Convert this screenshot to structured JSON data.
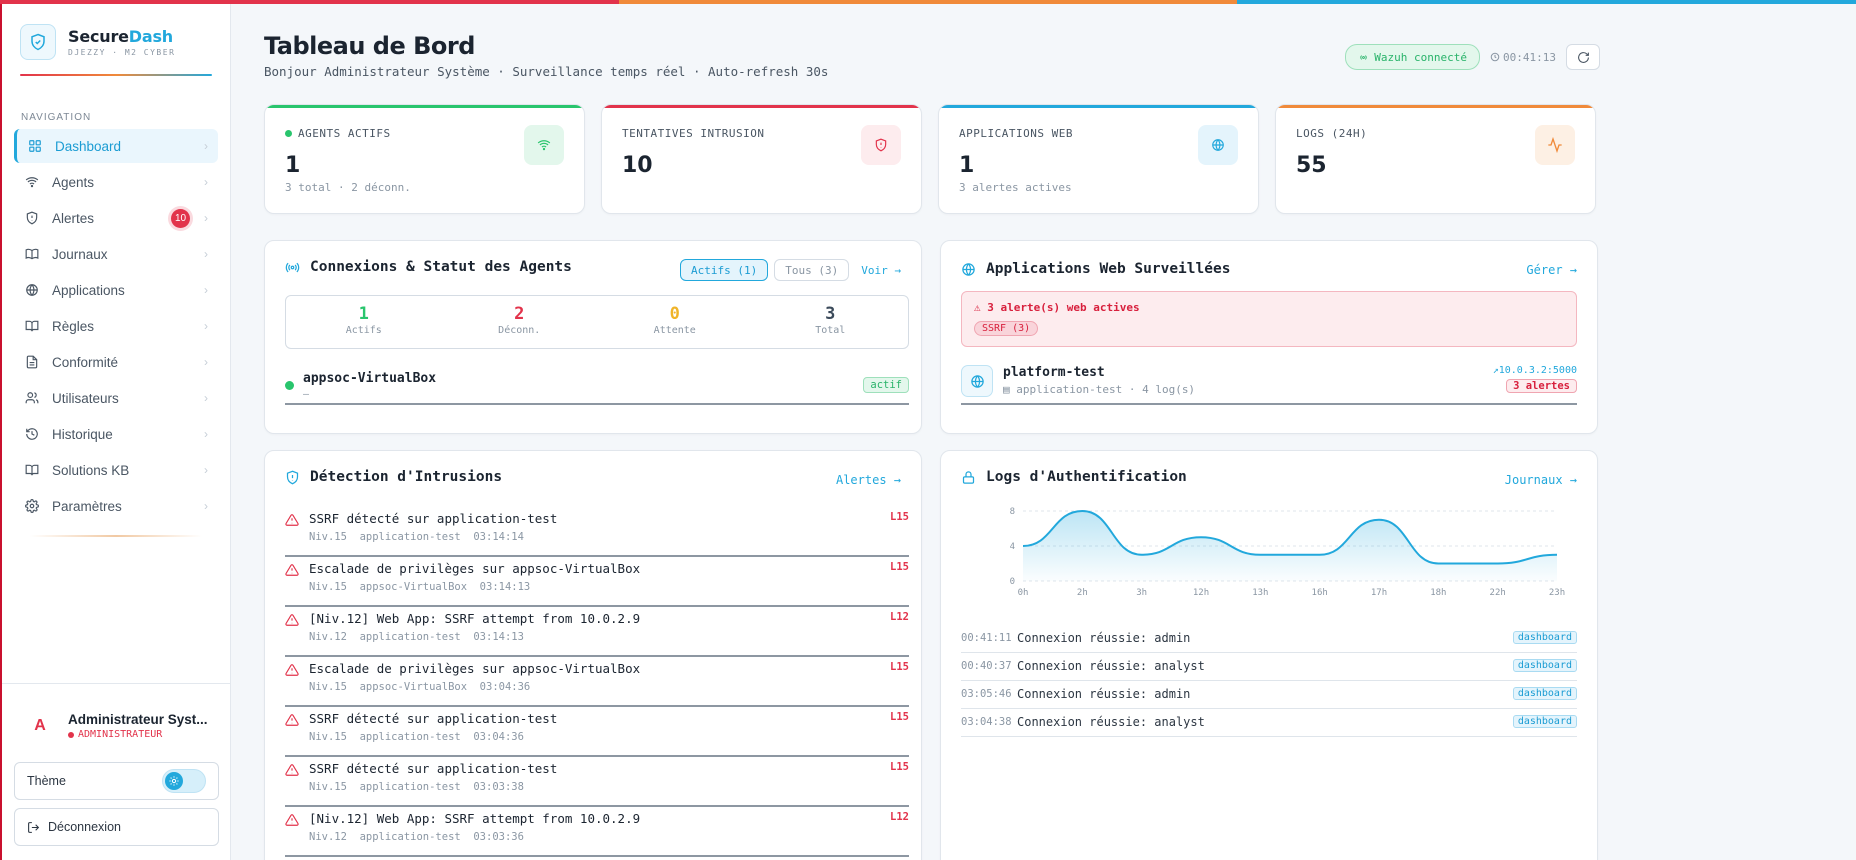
{
  "brand": {
    "name_part1": "Secure",
    "name_part2": "Dash",
    "subtitle": "DJEZZY · M2 CYBER"
  },
  "sidebar": {
    "section_label": "NAVIGATION",
    "items": [
      {
        "label": "Dashboard",
        "icon": "grid-icon",
        "active": true
      },
      {
        "label": "Agents",
        "icon": "wifi-icon"
      },
      {
        "label": "Alertes",
        "icon": "shield-alert-icon",
        "badge": "10"
      },
      {
        "label": "Journaux",
        "icon": "journal-icon"
      },
      {
        "label": "Applications",
        "icon": "globe-icon"
      },
      {
        "label": "Règles",
        "icon": "book-icon"
      },
      {
        "label": "Conformité",
        "icon": "document-icon"
      },
      {
        "label": "Utilisateurs",
        "icon": "users-icon"
      },
      {
        "label": "Historique",
        "icon": "history-icon"
      },
      {
        "label": "Solutions KB",
        "icon": "book-icon"
      },
      {
        "label": "Paramètres",
        "icon": "gear-icon"
      }
    ],
    "user": {
      "avatar_letter": "A",
      "name": "Administrateur Syst...",
      "role": "ADMINISTRATEUR"
    },
    "theme_label": "Thème",
    "logout_label": "Déconnexion"
  },
  "header": {
    "title": "Tableau de Bord",
    "subtitle": "Bonjour Administrateur Système · Surveillance temps réel · Auto-refresh 30s",
    "status": "Wazuh connecté",
    "clock": "00:41:13"
  },
  "stats": [
    {
      "label": "AGENTS ACTIFS",
      "value": "1",
      "foot": "3 total · 2 déconn.",
      "accent": "#29c56d",
      "icon": "wifi-icon"
    },
    {
      "label": "TENTATIVES INTRUSION",
      "value": "10",
      "foot": "",
      "accent": "#e2334b",
      "icon": "shield-alert-icon"
    },
    {
      "label": "APPLICATIONS WEB",
      "value": "1",
      "foot": "3 alertes actives",
      "accent": "#22a8dc",
      "icon": "globe-icon"
    },
    {
      "label": "LOGS (24H)",
      "value": "55",
      "foot": "",
      "accent": "#f08a3a",
      "icon": "activity-icon"
    }
  ],
  "agents_card": {
    "title": "Connexions & Statut des Agents",
    "filter_active": "Actifs (1)",
    "filter_all": "Tous (3)",
    "link": "Voir →",
    "counts": [
      {
        "value": "1",
        "label": "Actifs",
        "color": "#29c56d"
      },
      {
        "value": "2",
        "label": "Déconn.",
        "color": "#e2334b"
      },
      {
        "value": "0",
        "label": "Attente",
        "color": "#f0b429"
      },
      {
        "value": "3",
        "label": "Total",
        "color": "#3b4a5a"
      }
    ],
    "agent": {
      "name": "appsoc-VirtualBox",
      "sub": "—",
      "status": "actif"
    }
  },
  "webapps_card": {
    "title": "Applications Web Surveillées",
    "link": "Gérer →",
    "alert_text": "⚠ 3 alerte(s) web actives",
    "alert_chip": "SSRF (3)",
    "app": {
      "name": "platform-test",
      "sub": "application-test · 4 log(s)",
      "url": "10.0.3.2:5000",
      "alerts": "3 alertes"
    }
  },
  "intrusions_card": {
    "title": "Détection d'Intrusions",
    "link": "Alertes →",
    "items": [
      {
        "title": "SSRF détecté sur application-test",
        "meta": "Niv.15  application-test  03:14:14",
        "level": "L15"
      },
      {
        "title": "Escalade de privilèges sur appsoc-VirtualBox",
        "meta": "Niv.15  appsoc-VirtualBox  03:14:13",
        "level": "L15"
      },
      {
        "title": "[Niv.12] Web App: SSRF attempt from 10.0.2.9",
        "meta": "Niv.12  application-test  03:14:13",
        "level": "L12"
      },
      {
        "title": "Escalade de privilèges sur appsoc-VirtualBox",
        "meta": "Niv.15  appsoc-VirtualBox  03:04:36",
        "level": "L15"
      },
      {
        "title": "SSRF détecté sur application-test",
        "meta": "Niv.15  application-test  03:04:36",
        "level": "L15"
      },
      {
        "title": "SSRF détecté sur application-test",
        "meta": "Niv.15  application-test  03:03:38",
        "level": "L15"
      },
      {
        "title": "[Niv.12] Web App: SSRF attempt from 10.0.2.9",
        "meta": "Niv.12  application-test  03:03:36",
        "level": "L12"
      }
    ]
  },
  "auth_card": {
    "title": "Logs d'Authentification",
    "link": "Journaux →",
    "rows": [
      {
        "time": "00:41:11",
        "msg": "Connexion réussie: admin",
        "tag": "dashboard"
      },
      {
        "time": "00:40:37",
        "msg": "Connexion réussie: analyst",
        "tag": "dashboard"
      },
      {
        "time": "03:05:46",
        "msg": "Connexion réussie: admin",
        "tag": "dashboard"
      },
      {
        "time": "03:04:38",
        "msg": "Connexion réussie: analyst",
        "tag": "dashboard"
      }
    ]
  },
  "chart_data": {
    "type": "area",
    "categories": [
      "0h",
      "2h",
      "3h",
      "12h",
      "13h",
      "16h",
      "17h",
      "18h",
      "22h",
      "23h"
    ],
    "values": [
      4,
      8,
      3,
      5,
      3,
      3,
      7,
      2,
      2,
      3
    ],
    "ylim": [
      0,
      8
    ],
    "yticks": [
      "0",
      "4",
      "8"
    ],
    "color": "#22a8dc",
    "grid": true
  }
}
